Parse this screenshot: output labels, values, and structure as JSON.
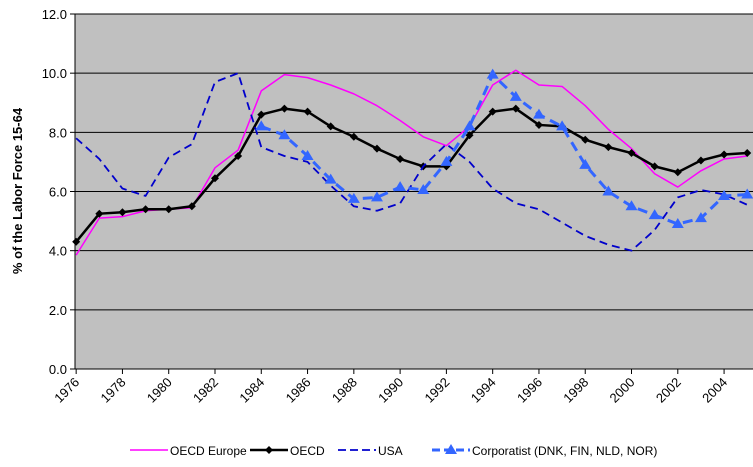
{
  "chart_data": {
    "type": "line",
    "y_label": "% of the Labor Force 15-64",
    "x": [
      1976,
      1977,
      1978,
      1979,
      1980,
      1981,
      1982,
      1983,
      1984,
      1985,
      1986,
      1987,
      1988,
      1989,
      1990,
      1991,
      1992,
      1993,
      1994,
      1995,
      1996,
      1997,
      1998,
      1999,
      2000,
      2001,
      2002,
      2003,
      2004,
      2005
    ],
    "xlim": [
      1975.95,
      2005.25
    ],
    "xticks": [
      1976,
      1978,
      1980,
      1982,
      1984,
      1986,
      1988,
      1990,
      1992,
      1994,
      1996,
      1998,
      2000,
      2002,
      2004
    ],
    "ylim": [
      0,
      12
    ],
    "yticks": [
      {
        "value": 0,
        "label": "0.0"
      },
      {
        "value": 2,
        "label": "2.0"
      },
      {
        "value": 4,
        "label": "4.0"
      },
      {
        "value": 6,
        "label": "6.0"
      },
      {
        "value": 8,
        "label": "8.0"
      },
      {
        "value": 10,
        "label": "10.0"
      },
      {
        "value": 12,
        "label": "12.0"
      }
    ],
    "grid": true,
    "legend": "bottom",
    "series": [
      {
        "name": "OECD Europe",
        "color": "#ff00ff",
        "values": [
          3.85,
          5.1,
          5.15,
          5.35,
          5.4,
          5.45,
          6.8,
          7.4,
          9.4,
          9.95,
          9.85,
          9.6,
          9.3,
          8.9,
          8.4,
          7.85,
          7.55,
          8.2,
          9.6,
          10.1,
          9.6,
          9.55,
          8.9,
          8.1,
          7.45,
          6.6,
          6.15,
          6.7,
          7.1,
          7.2
        ]
      },
      {
        "name": "OECD",
        "color": "#000000",
        "values": [
          4.3,
          5.25,
          5.3,
          5.4,
          5.4,
          5.5,
          6.45,
          7.2,
          8.6,
          8.8,
          8.7,
          8.2,
          7.85,
          7.45,
          7.1,
          6.85,
          6.85,
          7.9,
          8.7,
          8.8,
          8.25,
          8.2,
          7.75,
          7.5,
          7.3,
          6.85,
          6.65,
          7.05,
          7.25,
          7.3
        ]
      },
      {
        "name": "USA",
        "color": "#0000cc",
        "values": [
          7.8,
          7.1,
          6.1,
          5.85,
          7.15,
          7.6,
          9.7,
          10.0,
          7.5,
          7.2,
          7.0,
          6.2,
          5.5,
          5.35,
          5.6,
          6.85,
          7.6,
          7.0,
          6.1,
          5.6,
          5.4,
          4.95,
          4.5,
          4.2,
          4.0,
          4.7,
          5.8,
          6.05,
          5.9,
          5.55
        ]
      },
      {
        "name": "Corporatist (DNK, FIN, NLD, NOR)",
        "color": "#3366ff",
        "values": [
          null,
          null,
          null,
          null,
          null,
          null,
          null,
          null,
          8.2,
          7.9,
          7.2,
          6.4,
          5.75,
          5.8,
          6.15,
          6.05,
          7.0,
          8.2,
          9.95,
          9.2,
          8.6,
          8.2,
          6.9,
          6.0,
          5.5,
          5.2,
          4.9,
          5.1,
          5.85,
          5.9
        ]
      }
    ]
  }
}
